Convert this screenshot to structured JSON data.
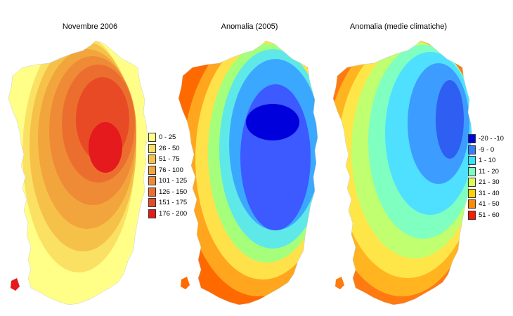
{
  "maps": [
    {
      "id": "november",
      "title": "Novembre 2006",
      "palette": [
        "#ffff88",
        "#fbe163",
        "#f6c148",
        "#f3a53d",
        "#ef8a36",
        "#ec6e2e",
        "#e84a26",
        "#e41a1c"
      ],
      "legend": {
        "entries": [
          {
            "label": "0 - 25",
            "color": "#ffff88"
          },
          {
            "label": "26 - 50",
            "color": "#fbe163"
          },
          {
            "label": "51 - 75",
            "color": "#f6c148"
          },
          {
            "label": "76 - 100",
            "color": "#f3a53d"
          },
          {
            "label": "101 - 125",
            "color": "#ef8a36"
          },
          {
            "label": "126 - 150",
            "color": "#ec6e2e"
          },
          {
            "label": "151 - 175",
            "color": "#e84a26"
          },
          {
            "label": "176 - 200",
            "color": "#e41a1c"
          }
        ]
      }
    },
    {
      "id": "anomaly-2005",
      "title": "Anomalia (2005)",
      "palette": [
        "#ff6a00",
        "#ffa51e",
        "#ffe14a",
        "#a6ff7a",
        "#5fe8e8",
        "#3ba8ff",
        "#3c5aff",
        "#0000dd"
      ]
    },
    {
      "id": "anomaly-climate",
      "title": "Anomalia (medie climatiche)",
      "palette": [
        "#ff7a10",
        "#ffb420",
        "#ffe648",
        "#bfff70",
        "#7fffc0",
        "#4fe0ff",
        "#3c9cff",
        "#2e5ef2"
      ],
      "legend": {
        "entries": [
          {
            "label": "-20 - -10",
            "color": "#0000e0"
          },
          {
            "label": "-9 - 0",
            "color": "#3b7bff"
          },
          {
            "label": "1 - 10",
            "color": "#33e3ff"
          },
          {
            "label": "11 - 20",
            "color": "#7bffc0"
          },
          {
            "label": "21 - 30",
            "color": "#d9ff5a"
          },
          {
            "label": "31 - 40",
            "color": "#ffd200"
          },
          {
            "label": "41 - 50",
            "color": "#ff8a00"
          },
          {
            "label": "51 - 60",
            "color": "#ff1a00"
          }
        ]
      }
    }
  ]
}
